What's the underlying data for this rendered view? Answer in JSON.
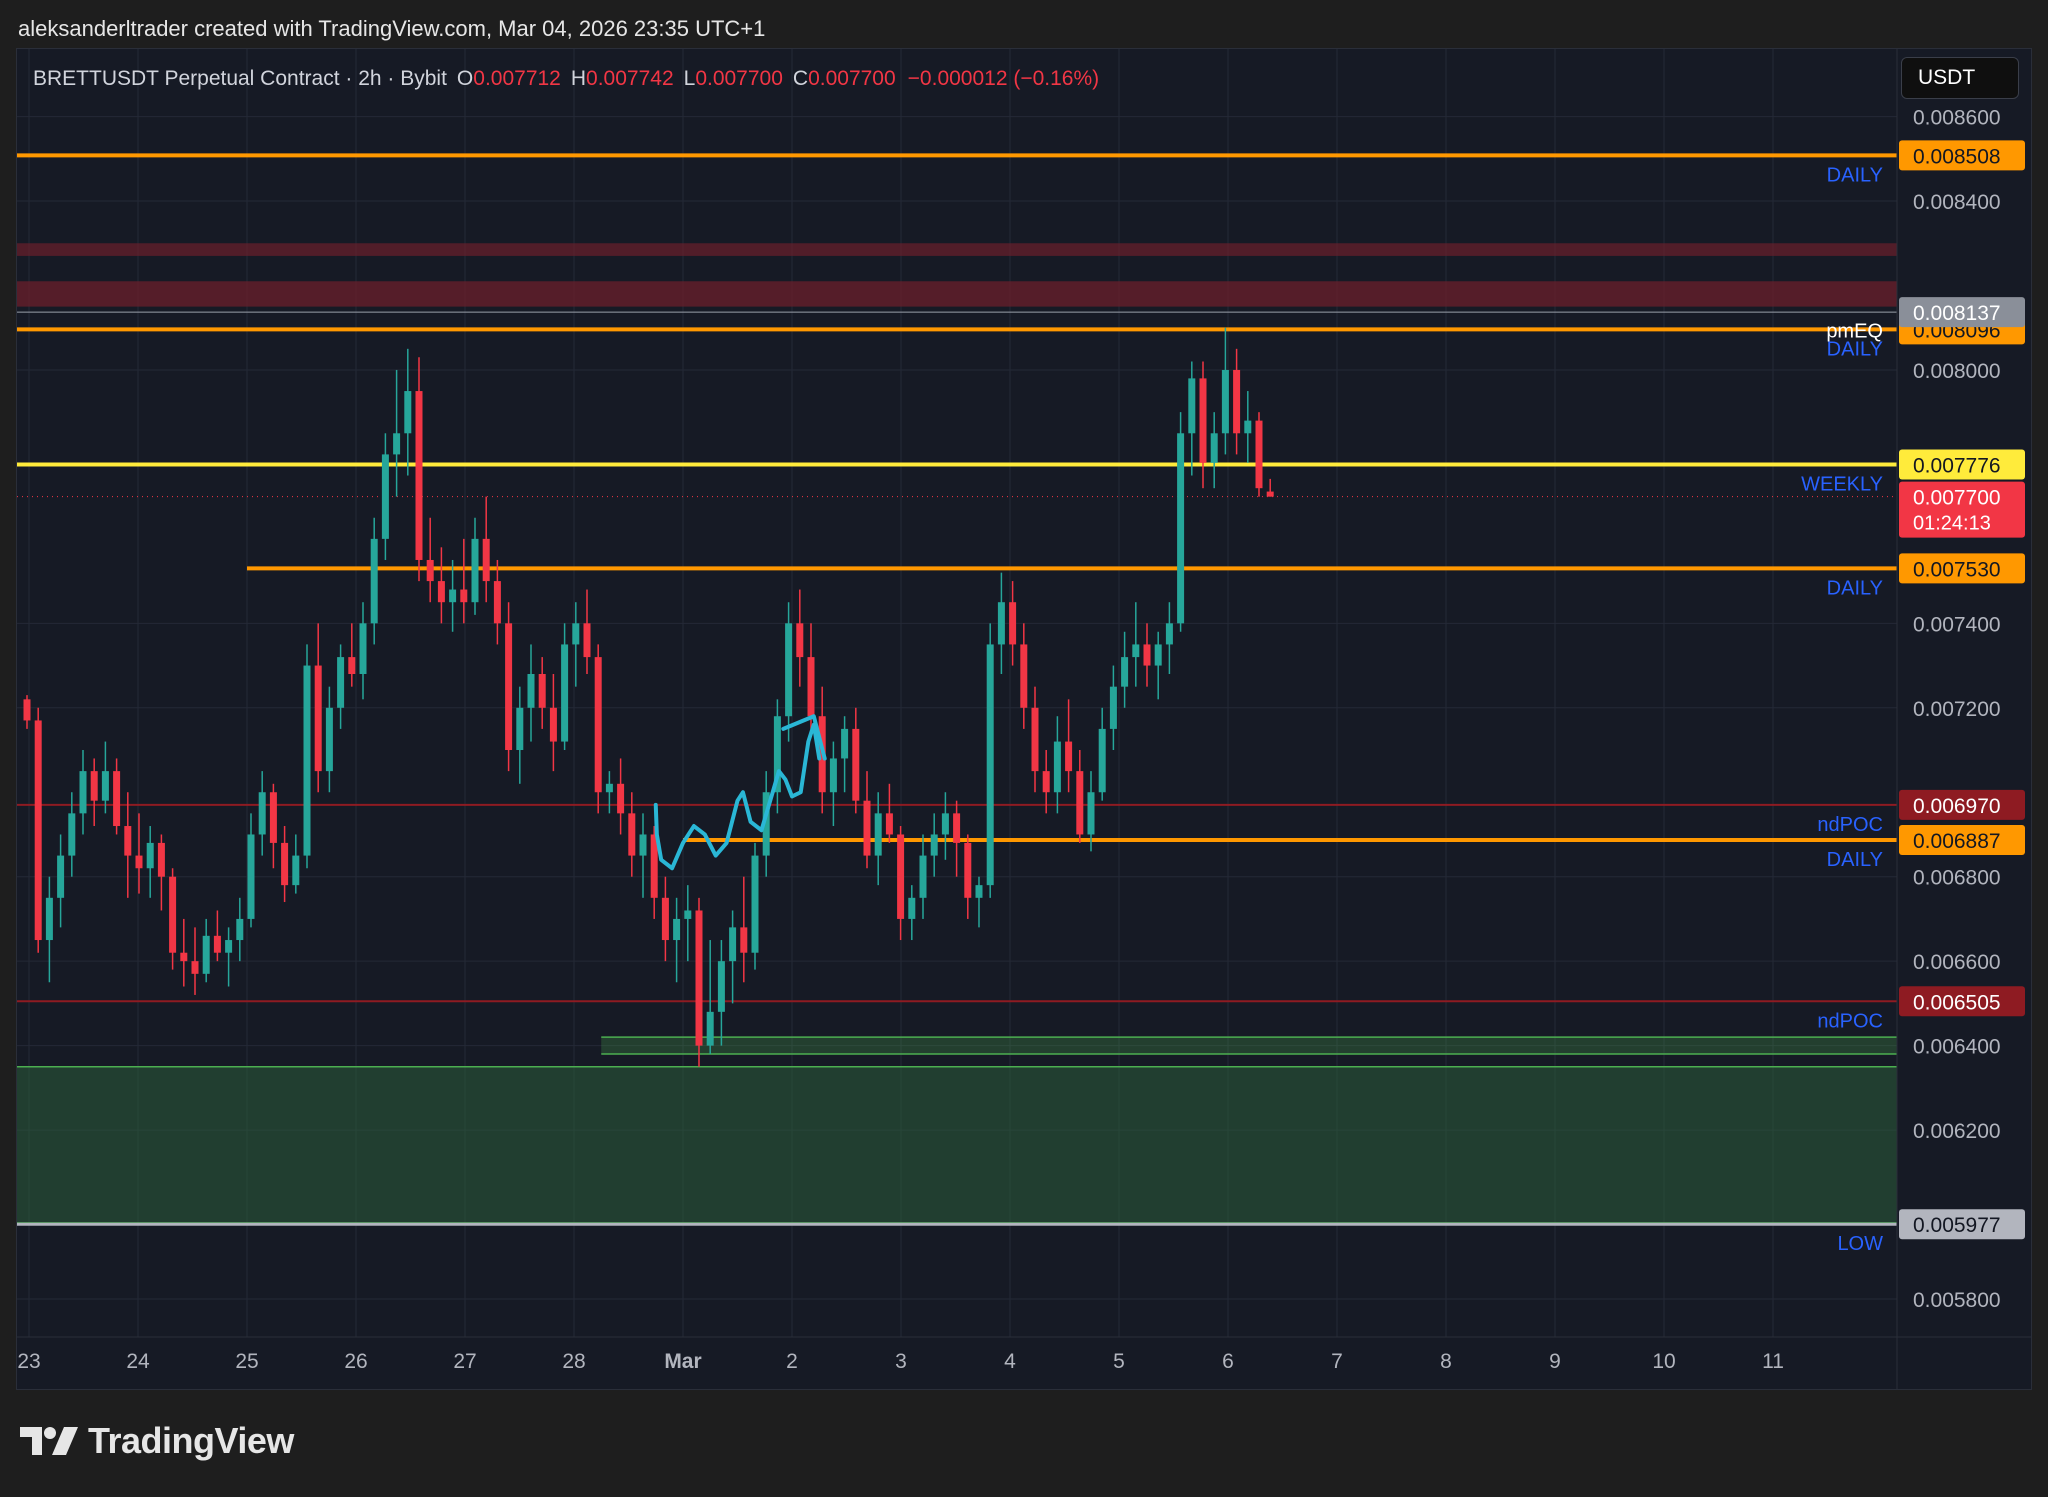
{
  "header": {
    "caption": "aleksanderltrader created with TradingView.com, Mar 04, 2026 23:35 UTC+1"
  },
  "legend": {
    "symbol": "BRETTUSDT Perpetual Contract · 2h · Bybit",
    "o_label": "O",
    "o_value": "0.007712",
    "h_label": "H",
    "h_value": "0.007742",
    "l_label": "L",
    "l_value": "0.007700",
    "c_label": "C",
    "c_value": "0.007700",
    "change": "−0.000012 (−0.16%)"
  },
  "currency_button": "USDT",
  "brand": {
    "name": "TradingView"
  },
  "colors": {
    "orange": "#ff9800",
    "yellow": "#ffeb3b",
    "dark_red": "#8e1b22",
    "green": "#4caf50",
    "up": "#26a69a",
    "down": "#f23645",
    "label_blue": "#2962ff",
    "annotation": "#2ab7d6",
    "grey": "#b2b5be"
  },
  "chart_data": {
    "type": "candlestick",
    "y_axis": {
      "range": [
        0.00571,
        0.00876
      ],
      "ticks": [
        "0.008600",
        "0.008400",
        "0.008000",
        "0.007400",
        "0.007200",
        "0.006800",
        "0.006600",
        "0.006400",
        "0.006200",
        "0.005800"
      ]
    },
    "x_axis": {
      "ticks": [
        {
          "label": "23",
          "day": 0
        },
        {
          "label": "24",
          "day": 1
        },
        {
          "label": "25",
          "day": 2
        },
        {
          "label": "26",
          "day": 3
        },
        {
          "label": "27",
          "day": 4
        },
        {
          "label": "28",
          "day": 5
        },
        {
          "label": "Mar",
          "day": 6
        },
        {
          "label": "2",
          "day": 7
        },
        {
          "label": "3",
          "day": 8
        },
        {
          "label": "4",
          "day": 9
        },
        {
          "label": "5",
          "day": 10
        },
        {
          "label": "6",
          "day": 11
        },
        {
          "label": "7",
          "day": 12
        },
        {
          "label": "8",
          "day": 13
        },
        {
          "label": "9",
          "day": 14
        },
        {
          "label": "10",
          "day": 15
        },
        {
          "label": "11",
          "day": 16
        }
      ]
    },
    "levels": [
      {
        "price": 0.008508,
        "tag": "0.008508",
        "note": "DAILY",
        "color": "#ff9800",
        "width": 4,
        "start_day": -1
      },
      {
        "price": 0.008096,
        "tag": "0.008096",
        "note": "DAILY",
        "note2": "pmEQ",
        "color": "#ff9800",
        "width": 4,
        "start_day": -1
      },
      {
        "price": 0.008137,
        "tag": "0.008137",
        "note": "",
        "color": "#9aa0aa",
        "width": 1,
        "start_day": -1
      },
      {
        "price": 0.007776,
        "tag": "0.007776",
        "note": "WEEKLY",
        "color": "#ffeb3b",
        "width": 4,
        "start_day": -1
      },
      {
        "price": 0.00753,
        "tag": "0.007530",
        "note": "DAILY",
        "color": "#ff9800",
        "width": 4,
        "start_day": 2.0
      },
      {
        "price": 0.00697,
        "tag": "0.006970",
        "note": "ndPOC",
        "color": "#8e1b22",
        "width": 2,
        "start_day": -1
      },
      {
        "price": 0.006887,
        "tag": "0.006887",
        "note": "DAILY",
        "color": "#ff9800",
        "width": 4,
        "start_day": 6.0
      },
      {
        "price": 0.006505,
        "tag": "0.006505",
        "note": "ndPOC",
        "color": "#8e1b22",
        "width": 2,
        "start_day": -1
      },
      {
        "price": 0.005977,
        "tag": "0.005977",
        "note": "LOW",
        "color": "#b2b5be",
        "width": 3,
        "start_day": -1
      }
    ],
    "current_price": {
      "price": 0.0077,
      "tag": "0.007700",
      "countdown": "01:24:13"
    },
    "zones": [
      {
        "top": 0.0083,
        "bottom": 0.00827,
        "color": "#6b1f2b",
        "opacity": 0.7
      },
      {
        "top": 0.00821,
        "bottom": 0.00815,
        "color": "#6b1f2b",
        "opacity": 0.75
      },
      {
        "top": 0.00642,
        "bottom": 0.00638,
        "color": "#4caf50",
        "opacity": 0.25,
        "start_day": 5.25
      },
      {
        "top": 0.00635,
        "bottom": 0.00598,
        "color": "#2f6b3e",
        "opacity": 0.45
      }
    ],
    "candles": [
      [
        0.00722,
        0.00723,
        0.00715,
        0.00717
      ],
      [
        0.00717,
        0.0072,
        0.00662,
        0.00665
      ],
      [
        0.00665,
        0.0068,
        0.00655,
        0.00675
      ],
      [
        0.00675,
        0.0069,
        0.00668,
        0.00685
      ],
      [
        0.00685,
        0.007,
        0.0068,
        0.00695
      ],
      [
        0.00695,
        0.0071,
        0.0069,
        0.00705
      ],
      [
        0.00705,
        0.00708,
        0.00692,
        0.00698
      ],
      [
        0.00698,
        0.00712,
        0.00695,
        0.00705
      ],
      [
        0.00705,
        0.00708,
        0.0069,
        0.00692
      ],
      [
        0.00692,
        0.007,
        0.00675,
        0.00685
      ],
      [
        0.00685,
        0.00695,
        0.00676,
        0.00682
      ],
      [
        0.00682,
        0.00692,
        0.00675,
        0.00688
      ],
      [
        0.00688,
        0.0069,
        0.00672,
        0.0068
      ],
      [
        0.0068,
        0.00682,
        0.00658,
        0.00662
      ],
      [
        0.00662,
        0.0067,
        0.00654,
        0.0066
      ],
      [
        0.0066,
        0.00668,
        0.00652,
        0.00657
      ],
      [
        0.00657,
        0.0067,
        0.00655,
        0.00666
      ],
      [
        0.00666,
        0.00672,
        0.0066,
        0.00662
      ],
      [
        0.00662,
        0.00668,
        0.00654,
        0.00665
      ],
      [
        0.00665,
        0.00675,
        0.0066,
        0.0067
      ],
      [
        0.0067,
        0.00695,
        0.00668,
        0.0069
      ],
      [
        0.0069,
        0.00705,
        0.00685,
        0.007
      ],
      [
        0.007,
        0.00702,
        0.00682,
        0.00688
      ],
      [
        0.00688,
        0.00692,
        0.00674,
        0.00678
      ],
      [
        0.00678,
        0.0069,
        0.00676,
        0.00685
      ],
      [
        0.00685,
        0.00735,
        0.00682,
        0.0073
      ],
      [
        0.0073,
        0.0074,
        0.007,
        0.00705
      ],
      [
        0.00705,
        0.00725,
        0.007,
        0.0072
      ],
      [
        0.0072,
        0.00735,
        0.00715,
        0.00732
      ],
      [
        0.00732,
        0.0074,
        0.00725,
        0.00728
      ],
      [
        0.00728,
        0.00745,
        0.00722,
        0.0074
      ],
      [
        0.0074,
        0.00765,
        0.00735,
        0.0076
      ],
      [
        0.0076,
        0.00785,
        0.00755,
        0.0078
      ],
      [
        0.0078,
        0.008,
        0.0077,
        0.00785
      ],
      [
        0.00785,
        0.00805,
        0.00775,
        0.00795
      ],
      [
        0.00795,
        0.00803,
        0.0075,
        0.00755
      ],
      [
        0.00755,
        0.00765,
        0.00745,
        0.0075
      ],
      [
        0.0075,
        0.00758,
        0.0074,
        0.00745
      ],
      [
        0.00745,
        0.00755,
        0.00738,
        0.00748
      ],
      [
        0.00748,
        0.0076,
        0.0074,
        0.00745
      ],
      [
        0.00745,
        0.00765,
        0.00742,
        0.0076
      ],
      [
        0.0076,
        0.0077,
        0.00745,
        0.0075
      ],
      [
        0.0075,
        0.00755,
        0.00735,
        0.0074
      ],
      [
        0.0074,
        0.00745,
        0.00705,
        0.0071
      ],
      [
        0.0071,
        0.00725,
        0.00702,
        0.0072
      ],
      [
        0.0072,
        0.00735,
        0.00712,
        0.00728
      ],
      [
        0.00728,
        0.00732,
        0.00715,
        0.0072
      ],
      [
        0.0072,
        0.00728,
        0.00705,
        0.00712
      ],
      [
        0.00712,
        0.0074,
        0.0071,
        0.00735
      ],
      [
        0.00735,
        0.00745,
        0.00725,
        0.0074
      ],
      [
        0.0074,
        0.00748,
        0.00728,
        0.00732
      ],
      [
        0.00732,
        0.00735,
        0.00695,
        0.007
      ],
      [
        0.007,
        0.00705,
        0.00695,
        0.00702
      ],
      [
        0.00702,
        0.00708,
        0.0069,
        0.00695
      ],
      [
        0.00695,
        0.007,
        0.0068,
        0.00685
      ],
      [
        0.00685,
        0.00695,
        0.00675,
        0.0069
      ],
      [
        0.0069,
        0.00692,
        0.0067,
        0.00675
      ],
      [
        0.00675,
        0.0068,
        0.0066,
        0.00665
      ],
      [
        0.00665,
        0.00675,
        0.00655,
        0.0067
      ],
      [
        0.0067,
        0.00678,
        0.0066,
        0.00672
      ],
      [
        0.00672,
        0.00675,
        0.00635,
        0.0064
      ],
      [
        0.0064,
        0.00665,
        0.00638,
        0.00648
      ],
      [
        0.00648,
        0.00665,
        0.0064,
        0.0066
      ],
      [
        0.0066,
        0.00672,
        0.0065,
        0.00668
      ],
      [
        0.00668,
        0.0068,
        0.00655,
        0.00662
      ],
      [
        0.00662,
        0.00688,
        0.00658,
        0.00685
      ],
      [
        0.00685,
        0.00705,
        0.0068,
        0.007
      ],
      [
        0.007,
        0.00722,
        0.00695,
        0.00718
      ],
      [
        0.00718,
        0.00745,
        0.00712,
        0.0074
      ],
      [
        0.0074,
        0.00748,
        0.00725,
        0.00732
      ],
      [
        0.00732,
        0.0074,
        0.00715,
        0.00718
      ],
      [
        0.00718,
        0.00725,
        0.00695,
        0.007
      ],
      [
        0.007,
        0.00712,
        0.00692,
        0.00708
      ],
      [
        0.00708,
        0.00718,
        0.007,
        0.00715
      ],
      [
        0.00715,
        0.0072,
        0.00695,
        0.00698
      ],
      [
        0.00698,
        0.00705,
        0.00682,
        0.00685
      ],
      [
        0.00685,
        0.007,
        0.00678,
        0.00695
      ],
      [
        0.00695,
        0.00702,
        0.00688,
        0.0069
      ],
      [
        0.0069,
        0.00692,
        0.00665,
        0.0067
      ],
      [
        0.0067,
        0.00678,
        0.00665,
        0.00675
      ],
      [
        0.00675,
        0.0069,
        0.0067,
        0.00685
      ],
      [
        0.00685,
        0.00695,
        0.0068,
        0.0069
      ],
      [
        0.0069,
        0.007,
        0.00684,
        0.00695
      ],
      [
        0.00695,
        0.00698,
        0.0068,
        0.00688
      ],
      [
        0.00688,
        0.0069,
        0.0067,
        0.00675
      ],
      [
        0.00675,
        0.0068,
        0.00668,
        0.00678
      ],
      [
        0.00678,
        0.0074,
        0.00675,
        0.00735
      ],
      [
        0.00735,
        0.00752,
        0.00728,
        0.00745
      ],
      [
        0.00745,
        0.0075,
        0.0073,
        0.00735
      ],
      [
        0.00735,
        0.0074,
        0.00715,
        0.0072
      ],
      [
        0.0072,
        0.00725,
        0.007,
        0.00705
      ],
      [
        0.00705,
        0.0071,
        0.00695,
        0.007
      ],
      [
        0.007,
        0.00718,
        0.00695,
        0.00712
      ],
      [
        0.00712,
        0.00722,
        0.007,
        0.00705
      ],
      [
        0.00705,
        0.0071,
        0.00688,
        0.0069
      ],
      [
        0.0069,
        0.00705,
        0.00686,
        0.007
      ],
      [
        0.007,
        0.0072,
        0.00698,
        0.00715
      ],
      [
        0.00715,
        0.0073,
        0.0071,
        0.00725
      ],
      [
        0.00725,
        0.00738,
        0.0072,
        0.00732
      ],
      [
        0.00732,
        0.00745,
        0.00725,
        0.00735
      ],
      [
        0.00735,
        0.0074,
        0.00725,
        0.0073
      ],
      [
        0.0073,
        0.00738,
        0.00722,
        0.00735
      ],
      [
        0.00735,
        0.00745,
        0.00728,
        0.0074
      ],
      [
        0.0074,
        0.0079,
        0.00738,
        0.00785
      ],
      [
        0.00785,
        0.00802,
        0.00775,
        0.00798
      ],
      [
        0.00798,
        0.00802,
        0.00772,
        0.00778
      ],
      [
        0.00778,
        0.0079,
        0.00772,
        0.00785
      ],
      [
        0.00785,
        0.0081,
        0.0078,
        0.008
      ],
      [
        0.008,
        0.00805,
        0.0078,
        0.00785
      ],
      [
        0.00785,
        0.00795,
        0.00778,
        0.00788
      ],
      [
        0.00788,
        0.0079,
        0.0077,
        0.00772
      ],
      [
        0.007712,
        0.007742,
        0.0077,
        0.0077
      ]
    ],
    "annotation": {
      "type": "freehand-arrow",
      "points": [
        [
          5.75,
          0.00697
        ],
        [
          5.76,
          0.0069
        ],
        [
          5.8,
          0.00684
        ],
        [
          5.9,
          0.00682
        ],
        [
          6.0,
          0.00688
        ],
        [
          6.1,
          0.00692
        ],
        [
          6.2,
          0.0069
        ],
        [
          6.3,
          0.00685
        ],
        [
          6.4,
          0.00688
        ],
        [
          6.5,
          0.00698
        ],
        [
          6.55,
          0.007
        ],
        [
          6.62,
          0.00693
        ],
        [
          6.72,
          0.00691
        ],
        [
          6.8,
          0.00698
        ],
        [
          6.88,
          0.00705
        ],
        [
          6.94,
          0.00703
        ],
        [
          7.0,
          0.00699
        ],
        [
          7.08,
          0.007
        ],
        [
          7.15,
          0.00712
        ],
        [
          7.2,
          0.00716
        ],
        [
          7.25,
          0.00708
        ]
      ],
      "head": [
        [
          6.92,
          0.00715
        ],
        [
          7.2,
          0.00718
        ],
        [
          7.3,
          0.00708
        ]
      ]
    }
  }
}
